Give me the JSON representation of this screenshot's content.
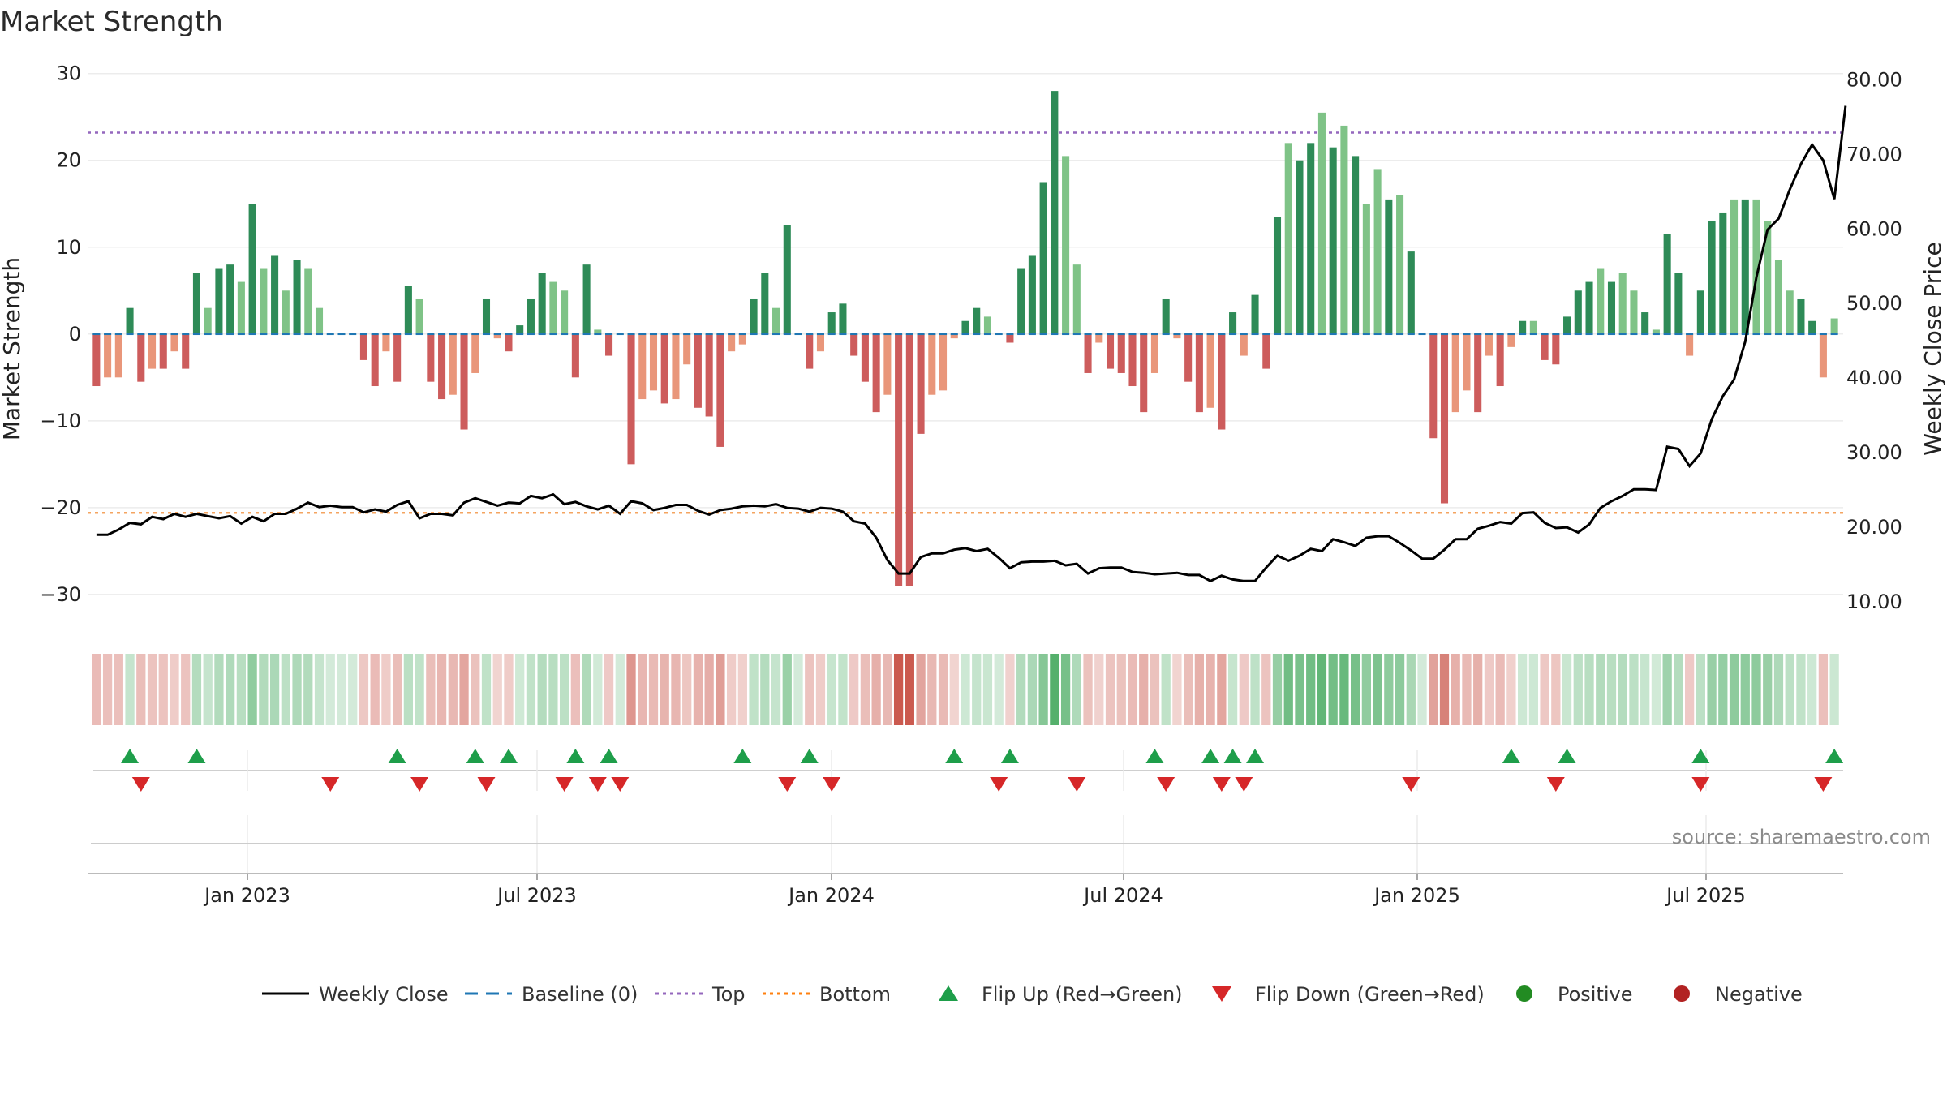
{
  "chart_data": {
    "type": "bar",
    "title": "Market Strength",
    "ylabel": "Market Strength",
    "y2label": "Weekly Close Price",
    "ylim": [
      -33,
      31
    ],
    "y2lim": [
      7.5,
      82
    ],
    "yticks": [
      "30",
      "20",
      "10",
      "0",
      "−10",
      "−20",
      "−30"
    ],
    "y2ticks": [
      "80.00",
      "70.00",
      "60.00",
      "50.00",
      "40.00",
      "30.00",
      "20.00",
      "10.00"
    ],
    "xticks": [
      "Jan 2023",
      "Jul 2023",
      "Jan 2024",
      "Jul 2024",
      "Jan 2025",
      "Jul 2025"
    ],
    "top_line": 23.2,
    "bottom_line": -20.6,
    "source": "source: sharemaestro.com",
    "legend": [
      {
        "label": "Weekly Close",
        "kind": "line",
        "color": "#000000"
      },
      {
        "label": "Baseline (0)",
        "kind": "dash",
        "color": "#1f77b4"
      },
      {
        "label": "Top",
        "kind": "dot",
        "color": "#9467bd"
      },
      {
        "label": "Bottom",
        "kind": "dot",
        "color": "#ff7f0e"
      },
      {
        "label": "Flip Up (Red→Green)",
        "kind": "tri-up",
        "color": "#1e9e4a"
      },
      {
        "label": "Flip Down (Green→Red)",
        "kind": "tri-down",
        "color": "#d62728"
      },
      {
        "label": "Positive",
        "kind": "dot-circle",
        "color": "#228b22"
      },
      {
        "label": "Negative",
        "kind": "dot-circle",
        "color": "#b22222"
      }
    ],
    "colors": {
      "pos_dark": "#2e8b57",
      "pos_light": "#7fc387",
      "neg_dark": "#cd5c5c",
      "neg_light": "#e9967a",
      "price": "#000000",
      "top": "#9467bd",
      "bottom": "#f4a460"
    },
    "values": [
      -6,
      -5,
      -5,
      3,
      -5.5,
      -4,
      -4,
      -2,
      -4,
      7,
      3,
      7.5,
      8,
      6,
      15,
      7.5,
      9,
      5,
      8.5,
      7.5,
      3,
      0,
      0,
      0,
      -3,
      -6,
      -2,
      -5.5,
      5.5,
      4,
      -5.5,
      -7.5,
      -7,
      -11,
      -4.5,
      4,
      -0.5,
      -2,
      1,
      4,
      7,
      6,
      5,
      -5,
      8,
      0.5,
      -2.5,
      0,
      -15,
      -7.5,
      -6.5,
      -8,
      -7.5,
      -3.5,
      -8.5,
      -9.5,
      -13,
      -2,
      -1.2,
      4,
      7,
      3,
      12.5,
      0,
      -4,
      -2,
      2.5,
      3.5,
      -2.5,
      -5.5,
      -9,
      -7,
      -29,
      -29,
      -11.5,
      -7,
      -6.5,
      -0.5,
      1.5,
      3,
      2,
      0,
      -1,
      7.5,
      9,
      17.5,
      28,
      20.5,
      8,
      -4.5,
      -1,
      -4,
      -4.5,
      -6,
      -9,
      -4.5,
      4,
      -0.5,
      -5.5,
      -9,
      -8.5,
      -11,
      2.5,
      -2.5,
      4.5,
      -4,
      13.5,
      22,
      20,
      22,
      25.5,
      21.5,
      24,
      20.5,
      15,
      19,
      15.5,
      16,
      9.5,
      0,
      -12,
      -19.5,
      -9,
      -6.5,
      -9,
      -2.5,
      -6,
      -1.5,
      1.5,
      1.5,
      -3,
      -3.5,
      2,
      5,
      6,
      7.5,
      6,
      7,
      5,
      2.5,
      0.5,
      11.5,
      7,
      -2.5,
      5,
      13,
      14,
      15.5,
      15.5,
      15.5,
      13,
      8.5,
      5,
      4,
      1.5,
      -5,
      1.8
    ],
    "dark": [
      1,
      0,
      0,
      1,
      1,
      0,
      1,
      0,
      1,
      1,
      0,
      1,
      1,
      0,
      1,
      0,
      1,
      0,
      1,
      0,
      0,
      0,
      0,
      0,
      1,
      1,
      0,
      1,
      1,
      0,
      1,
      1,
      0,
      1,
      0,
      1,
      0,
      1,
      1,
      1,
      1,
      0,
      0,
      1,
      1,
      0,
      1,
      0,
      1,
      0,
      0,
      1,
      0,
      0,
      1,
      1,
      1,
      0,
      0,
      1,
      1,
      0,
      1,
      0,
      1,
      0,
      1,
      1,
      1,
      1,
      1,
      0,
      1,
      1,
      1,
      0,
      0,
      0,
      1,
      1,
      0,
      0,
      1,
      1,
      1,
      1,
      1,
      0,
      0,
      1,
      0,
      1,
      1,
      1,
      1,
      0,
      1,
      0,
      1,
      1,
      0,
      1,
      1,
      0,
      1,
      1,
      1,
      0,
      1,
      1,
      0,
      1,
      0,
      1,
      0,
      0,
      1,
      0,
      1,
      0,
      1,
      1,
      0,
      0,
      1,
      0,
      1,
      0,
      1,
      0,
      1,
      1,
      1,
      1,
      1,
      0,
      1,
      0,
      0,
      1,
      0,
      1,
      1,
      0,
      1,
      1,
      1,
      0,
      1,
      0,
      0,
      0,
      0,
      1,
      1
    ],
    "price": [
      19,
      19,
      19.7,
      20.6,
      20.4,
      21.4,
      21.1,
      21.8,
      21.4,
      21.8,
      21.5,
      21.2,
      21.5,
      20.5,
      21.4,
      20.8,
      21.8,
      21.8,
      22.5,
      23.3,
      22.7,
      22.9,
      22.7,
      22.7,
      22,
      22.4,
      22.1,
      23,
      23.5,
      21.2,
      21.8,
      21.8,
      21.6,
      23.3,
      23.9,
      23.4,
      22.9,
      23.3,
      23.2,
      24.2,
      23.9,
      24.4,
      23.1,
      23.4,
      22.8,
      22.4,
      22.9,
      21.8,
      23.5,
      23.2,
      22.3,
      22.6,
      23,
      23,
      22.2,
      21.7,
      22.3,
      22.5,
      22.8,
      22.9,
      22.8,
      23.1,
      22.6,
      22.5,
      22.1,
      22.6,
      22.5,
      22.1,
      20.8,
      20.5,
      18.6,
      15.6,
      13.8,
      13.8,
      16,
      16.5,
      16.5,
      17,
      17.2,
      16.8,
      17.1,
      15.9,
      14.5,
      15.3,
      15.4,
      15.4,
      15.5,
      14.9,
      15.1,
      13.8,
      14.5,
      14.6,
      14.6,
      14,
      13.9,
      13.7,
      13.8,
      13.9,
      13.6,
      13.6,
      12.8,
      13.5,
      13,
      12.8,
      12.8,
      14.6,
      16.2,
      15.5,
      16.2,
      17.1,
      16.8,
      18.4,
      18,
      17.5,
      18.6,
      18.8,
      18.8,
      17.9,
      16.9,
      15.8,
      15.8,
      17,
      18.4,
      18.4,
      19.8,
      20.2,
      20.7,
      20.5,
      21.9,
      22,
      20.6,
      19.9,
      20,
      19.3,
      20.4,
      22.6,
      23.5,
      24.2,
      25.1,
      25.1,
      25,
      30.8,
      30.5,
      28.2,
      29.9,
      34.5,
      37.6,
      39.8,
      44.9,
      53.5,
      59.9,
      61.4,
      65.3,
      68.7,
      71.3,
      69.2,
      64,
      76.5
    ],
    "flip_up": [
      3,
      9,
      27,
      34,
      37,
      43,
      46,
      58,
      64,
      77,
      82,
      95,
      100,
      102,
      104,
      127,
      132,
      144,
      156
    ],
    "flip_down": [
      4,
      21,
      29,
      35,
      42,
      45,
      47,
      62,
      66,
      81,
      88,
      96,
      101,
      103,
      118,
      131,
      144,
      155
    ]
  }
}
